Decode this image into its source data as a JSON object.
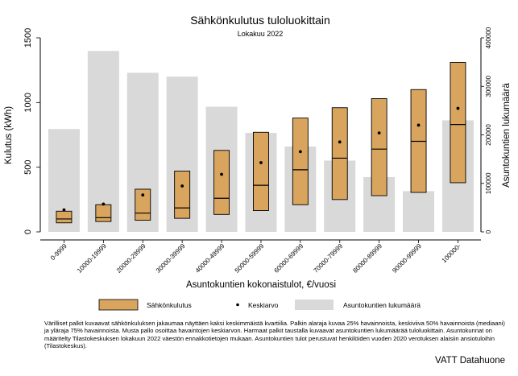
{
  "chart_data": {
    "type": "box",
    "title": "Sähkönkulutus tuloluokittain",
    "subtitle": "Lokakuu 2022",
    "xlabel": "Asuntokuntien kokonaistulot, €/vuosi",
    "ylabel_left": "Kulutus (kWh)",
    "ylabel_right": "Asuntokuntien lukumäärä",
    "ylim_left": [
      0,
      1500
    ],
    "yticks_left": [
      0,
      500,
      1000,
      1500
    ],
    "ylim_right": [
      0,
      400000
    ],
    "yticks_right": [
      0,
      100000,
      200000,
      300000,
      400000
    ],
    "categories": [
      "0-9999",
      "10000-19999",
      "20000-29999",
      "30000-39999",
      "40000-49999",
      "50000-59999",
      "60000-69999",
      "70000-79999",
      "80000-89999",
      "90000-99999",
      "100000-"
    ],
    "households": [
      212000,
      373000,
      328000,
      320000,
      258000,
      204000,
      176000,
      147000,
      113000,
      84000,
      230000
    ],
    "q25": [
      70,
      80,
      90,
      105,
      135,
      165,
      210,
      250,
      280,
      305,
      380
    ],
    "median": [
      100,
      110,
      145,
      185,
      260,
      360,
      480,
      570,
      640,
      700,
      830
    ],
    "q75": [
      160,
      210,
      330,
      470,
      630,
      770,
      880,
      960,
      1030,
      1100,
      1310
    ],
    "mean": [
      170,
      215,
      285,
      355,
      445,
      535,
      620,
      695,
      765,
      825,
      955
    ],
    "legend": [
      "Sähkönkulutus",
      "Keskiarvo",
      "Asuntokuntien lukumäärä"
    ],
    "colors": {
      "box": "#d9a55e",
      "household_bar": "#d9d9d9"
    }
  },
  "footnote": "Värilliset palkit kuvaavat sähkönkuluksen jakaumaa näyttäen kaksi keskimmäistä kvartiilia. Palkin alaraja kuvaa 25% havainnoista, keskiviiva 50% havainnoista (mediaani) ja yläraja 75% havainnoista. Musta pallo osoittaa havaintojen keskiarvon. Harmaat palkit taustalla kuvaavat asuntokuntien lukumäärää tuloluokittain. Asuntokunnat on määritelty Tilastokeskuksen lokakuun 2022 väestön ennakkotietojen mukaan. Asuntokuntien tulot perustuvat henkilöiden vuoden 2020 verotuksen alaisiin ansiotuloihin (Tilastokeskus).",
  "credit": "VATT Datahuone"
}
